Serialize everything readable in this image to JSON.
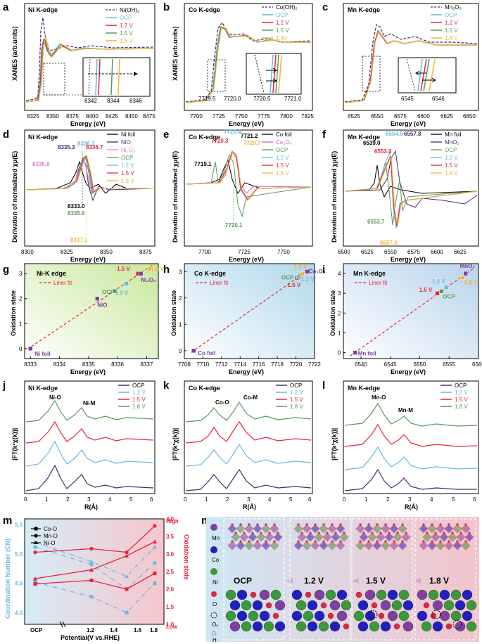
{
  "colors": {
    "black": "#1a1a1a",
    "ocp": "#6ab7e0",
    "v12": "#6ab7e0",
    "v15": "#e8243c",
    "v18": "#f0b43c",
    "purple": "#4a2a6a",
    "pink": "#e87ec0",
    "green": "#5a9a5a",
    "ni_ref": "#c060c0",
    "mn_ref": "#8040a0"
  },
  "panels": {
    "a": {
      "letter": "a",
      "title": "Ni K-edge",
      "ylabel": "XANES (arb.units)",
      "xlabel": "Energy (eV)",
      "ticks": [
        "8325",
        "8350",
        "8375",
        "8400",
        "8425",
        "8450",
        "8475"
      ],
      "legend": [
        "Ni(OH)₂",
        "OCP",
        "1.2 V",
        "1.5 V",
        "1.8 V"
      ],
      "inset_ticks": [
        "8342",
        "8344",
        "8346"
      ]
    },
    "b": {
      "letter": "b",
      "title": "Co K-edge",
      "ylabel": "XANES (arb.units)",
      "xlabel": "Energy (eV)",
      "ticks": [
        "7700",
        "7725",
        "7750",
        "7775",
        "7800",
        "7825"
      ],
      "legend": [
        "Co(OH)₂",
        "OCP",
        "1.2 V",
        "1.5 V",
        "1.8V"
      ],
      "inset_ticks": [
        "7719.5",
        "7720.0",
        "7720.5",
        "7721.0"
      ]
    },
    "c": {
      "letter": "c",
      "title": "Mn K-edge",
      "ylabel": "",
      "xlabel": "Energy (eV)",
      "ticks": [
        "6525",
        "6550",
        "6575",
        "6600",
        "6625",
        "6650"
      ],
      "legend": [
        "Mn₂O₃",
        "OCP",
        "1.2 V",
        "1.5 V",
        "1.8 V"
      ],
      "inset_ticks": [
        "6545",
        "6546"
      ]
    },
    "d": {
      "letter": "d",
      "title": "Ni K-edge",
      "ylabel": "Derivation of normalized χμ(E)",
      "xlabel": "Energy (eV)",
      "ticks": [
        "8300",
        "8325",
        "8350",
        "8375"
      ],
      "legend": [
        "Ni foil",
        "NiO",
        "Ni₂O₃",
        "OCP",
        "1.2 V",
        "1.5 V",
        "1.8 V"
      ],
      "annotations": [
        "8335.3",
        "8336.3",
        "8336.7",
        "8336.8",
        "8333.0",
        "8335.9",
        "8337.1"
      ]
    },
    "e": {
      "letter": "e",
      "title": "Co K-edge",
      "ylabel": "Derivation of normalized χμ(E)",
      "xlabel": "Energy (eV)",
      "ticks": [
        "7700",
        "7725",
        "7750"
      ],
      "legend": [
        "Co foil",
        "Co₂O₃",
        "OCP",
        "1.2 V",
        "1.5 V",
        "1.8 V"
      ],
      "annotations": [
        "7720.4",
        "7721.2",
        "7720.3",
        "7720.7",
        "7719.1",
        "7720.1"
      ]
    },
    "f": {
      "letter": "f",
      "title": "Mn K-edge",
      "ylabel": "Derivation of normalized χμ(E)",
      "xlabel": "Energy (eV)",
      "ticks": [
        "6500",
        "6525",
        "6550",
        "6575",
        "6600",
        "6625"
      ],
      "legend": [
        "Mn foil",
        "MnO₂",
        "OCP",
        "1.2 V",
        "1.5 V",
        "1.8 V"
      ],
      "annotations": [
        "6554.5",
        "6557.8",
        "6539.0",
        "6553.0",
        "6553.7",
        "6557.3"
      ]
    },
    "g": {
      "letter": "g",
      "title": "Ni-K edge",
      "fit": "Liner fit",
      "ylabel": "Oxidation state",
      "xlabel": "Energy (eV)",
      "xticks": [
        "8333",
        "8334",
        "8335",
        "8336",
        "8337"
      ],
      "yticks": [
        "0",
        "1",
        "2",
        "3"
      ],
      "labels": [
        "Ni foil",
        "NiO",
        "OCP",
        "1.2 V",
        "1.5 V",
        "1.8 V",
        "Ni₂O₃"
      ]
    },
    "h": {
      "letter": "h",
      "title": "Co K-edge",
      "fit": "Liner fit",
      "ylabel": "Oxidation state",
      "xlabel": "Energy (eV)",
      "xticks": [
        "7708",
        "7710",
        "7712",
        "7714",
        "7716",
        "7718",
        "7720",
        "7722"
      ],
      "yticks": [
        "0",
        "1",
        "2",
        "3"
      ],
      "labels": [
        "Co foil",
        "OCP",
        "1.2 V",
        "1.5 V",
        "1.8 V",
        "Co₂O₃"
      ]
    },
    "i": {
      "letter": "i",
      "title": "Mn K-edge",
      "fit": "Liner fit",
      "ylabel": "Oxidation state",
      "xlabel": "Energy (eV)",
      "xticks": [
        "6540",
        "6545",
        "6550",
        "6555",
        "6560"
      ],
      "yticks": [
        "0",
        "1",
        "2",
        "3",
        "4"
      ],
      "labels": [
        "Mn foil",
        "OCP",
        "1.2 V",
        "1.5 V",
        "1.8 V",
        "MnO₂"
      ]
    },
    "j": {
      "letter": "j",
      "title": "Ni K-edge",
      "ylabel": "|FT(k²χ(k))|",
      "xlabel": "R(Å)",
      "xticks": [
        "0",
        "1",
        "2",
        "3",
        "4",
        "5",
        "6"
      ],
      "legend": [
        "OCP",
        "1.2 V",
        "1.5 V",
        "1.8 V"
      ],
      "peaks": [
        "Ni-O",
        "Ni-M"
      ]
    },
    "k": {
      "letter": "k",
      "title": "Co K-edge",
      "ylabel": "|FT(k²χ(k))|",
      "xlabel": "R(Å)",
      "xticks": [
        "0",
        "1",
        "2",
        "3",
        "4",
        "5",
        "6"
      ],
      "legend": [
        "OCP",
        "1.2 V",
        "1.5 V",
        "1.8 V"
      ],
      "peaks": [
        "Co-O",
        "Co-M"
      ]
    },
    "l": {
      "letter": "l",
      "title": "Mn K-edge",
      "ylabel": "|FT(k²χ(k))|",
      "xlabel": "R(Å)",
      "xticks": [
        "0",
        "1",
        "2",
        "3",
        "4",
        "5",
        "6"
      ],
      "legend": [
        "OCP",
        "1.2 V",
        "1.5 V",
        "1.8 V"
      ],
      "peaks": [
        "Mn-O",
        "Mn-M"
      ]
    },
    "m": {
      "letter": "m",
      "ylabel_left": "Coordination Number (CN)",
      "ylabel_right": "Oxidation state",
      "xlabel": "Potential(V vs.RHE)",
      "xticks": [
        "OCP",
        "1.2",
        "1.4",
        "1.6",
        "1.8"
      ],
      "yticks_left": [
        "4.0",
        "4.5",
        "5.0",
        "5.5"
      ],
      "yticks_right": [
        "1.0",
        "1.5",
        "2.0",
        "2.5",
        "3.0",
        "3.5",
        "4.0"
      ],
      "high": "High",
      "low": "Low",
      "legend": [
        "Co-O",
        "Mn-O",
        "Ni-O"
      ]
    },
    "n": {
      "letter": "n",
      "legend": [
        "Mn",
        "Co",
        "Ni",
        "O",
        "Oᵥ",
        "H"
      ],
      "stages": [
        "OCP",
        "1.2 V",
        "1.5 V",
        "1.8 V"
      ]
    }
  },
  "chart_data": [
    {
      "panel": "g",
      "type": "scatter",
      "title": "Ni-K edge",
      "xlabel": "Energy (eV)",
      "ylabel": "Oxidation state",
      "x": [
        8333.0,
        8335.3,
        8335.9,
        8336.3,
        8336.7,
        8337.1,
        8336.8
      ],
      "y": [
        0,
        2,
        2.3,
        2.6,
        3.0,
        3.2,
        3.0
      ],
      "names": [
        "Ni foil",
        "NiO",
        "OCP",
        "1.2 V",
        "1.5 V",
        "1.8 V",
        "Ni₂O₃"
      ],
      "xlim": [
        8332.8,
        8337.4
      ],
      "ylim": [
        -0.4,
        3.4
      ]
    },
    {
      "panel": "h",
      "type": "scatter",
      "title": "Co K-edge",
      "xlabel": "Energy (eV)",
      "ylabel": "Oxidation state",
      "x": [
        7709.0,
        7720.1,
        7720.3,
        7720.4,
        7720.7,
        7721.2
      ],
      "y": [
        0,
        2.75,
        2.8,
        2.85,
        2.9,
        3.0
      ],
      "names": [
        "Co foil",
        "OCP",
        "1.5 V",
        "1.2 V",
        "1.8 V",
        "Co₂O₃"
      ],
      "xlim": [
        7708,
        7722
      ],
      "ylim": [
        -0.3,
        3.3
      ]
    },
    {
      "panel": "i",
      "type": "scatter",
      "title": "Mn K-edge",
      "xlabel": "Energy (eV)",
      "ylabel": "Oxidation state",
      "x": [
        6539.0,
        6553.0,
        6553.7,
        6554.5,
        6557.3,
        6557.8
      ],
      "y": [
        0,
        3.0,
        3.1,
        3.3,
        3.8,
        4.0
      ],
      "names": [
        "Mn foil",
        "1.5 V",
        "OCP",
        "1.2 V",
        "1.8 V",
        "MnO₂"
      ],
      "xlim": [
        6537,
        6560
      ],
      "ylim": [
        -0.3,
        4.5
      ]
    },
    {
      "panel": "m",
      "type": "line",
      "xlabel": "Potential(V vs.RHE)",
      "categories": [
        "OCP",
        "1.2",
        "1.5",
        "1.8"
      ],
      "series": [
        {
          "name": "Co-O CN",
          "values": [
            4.52,
            4.27,
            4.0,
            4.5
          ]
        },
        {
          "name": "Mn-O CN",
          "values": [
            5.12,
            4.82,
            4.4,
            4.85
          ]
        },
        {
          "name": "Ni-O CN",
          "values": [
            5.2,
            4.87,
            4.62,
            5.12
          ]
        },
        {
          "name": "Co oxidation",
          "values": [
            2.15,
            2.25,
            2.0,
            2.45
          ]
        },
        {
          "name": "Mn oxidation",
          "values": [
            3.05,
            3.15,
            3.05,
            3.8
          ]
        },
        {
          "name": "Ni oxidation",
          "values": [
            2.3,
            2.55,
            2.95,
            3.35
          ]
        }
      ],
      "ylim_left": [
        3.8,
        5.6
      ],
      "ylim_right": [
        1.0,
        4.0
      ]
    }
  ]
}
